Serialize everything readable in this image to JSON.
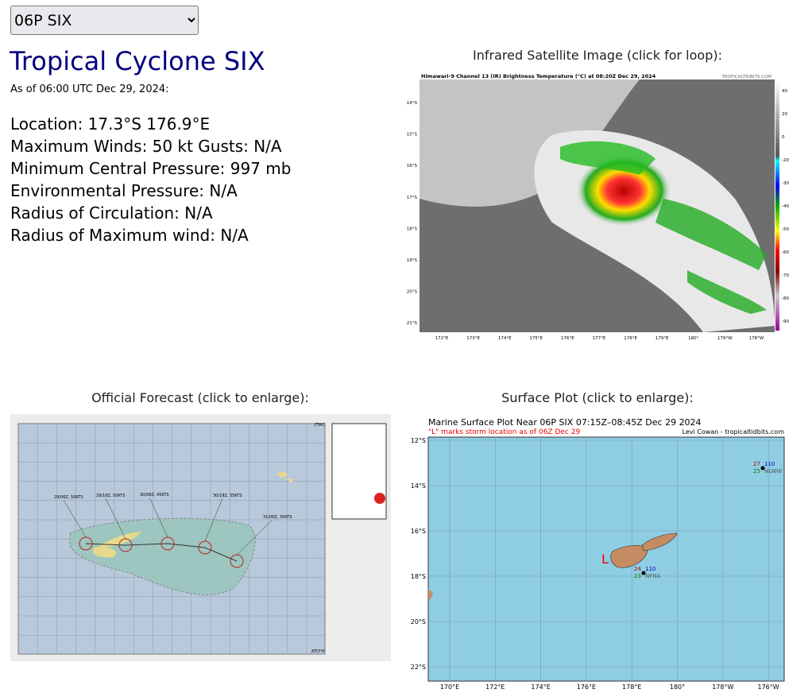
{
  "storm_select": {
    "value": "06P SIX"
  },
  "header": {
    "title": "Tropical Cyclone SIX",
    "as_of": "As of 06:00 UTC Dec 29, 2024:"
  },
  "info": [
    "Location: 17.3°S 176.9°E",
    "Maximum Winds: 50 kt  Gusts: N/A",
    "Minimum Central Pressure: 997 mb",
    "Environmental Pressure: N/A",
    "Radius of Circulation: N/A",
    "Radius of Maximum wind: N/A"
  ],
  "satellite": {
    "caption": "Infrared Satellite Image (click for loop):",
    "image_title": "Himawari-9 Channel 13 (IR) Brightness Temperature (°C) at 08:20Z Dec 29, 2024",
    "credit": "TROPICALTIDBITS.COM",
    "lat_labels": [
      "14°S",
      "15°S",
      "16°S",
      "17°S",
      "18°S",
      "19°S",
      "20°S",
      "21°S"
    ],
    "lon_labels": [
      "172°E",
      "173°E",
      "174°E",
      "175°E",
      "176°E",
      "177°E",
      "178°E",
      "179°E",
      "180°",
      "179°W",
      "178°W"
    ],
    "colorbar_labels": [
      "40",
      "20",
      "0",
      "-20",
      "-30",
      "-40",
      "-50",
      "-60",
      "-70",
      "-80",
      "-90"
    ]
  },
  "forecast": {
    "caption": "Official Forecast (click to enlarge):",
    "agency": "JTWC",
    "footer": "ATCF®",
    "points": [
      "29/06Z, 50KTS",
      "29/18Z, 50KTS",
      "30/06Z, 45KTS",
      "30/18Z, 35KTS",
      "31/06Z, 30KTS"
    ]
  },
  "surface": {
    "caption": "Surface Plot (click to enlarge):",
    "title": "Marine Surface Plot Near 06P SIX 07:15Z–08:45Z Dec 29 2024",
    "subtitle": "\"L\" marks storm location as of 06Z Dec 29",
    "credit": "Levi Cowan - tropicaltidbits.com",
    "lat_labels": [
      "12°S",
      "14°S",
      "16°S",
      "18°S",
      "20°S",
      "22°S"
    ],
    "lon_labels": [
      "170°E",
      "172°E",
      "174°E",
      "176°E",
      "178°E",
      "180°",
      "178°W",
      "176°W"
    ],
    "storm_marker": "L",
    "stations": [
      {
        "id": "NLWW",
        "temp": "27",
        "dew": "25",
        "pressure": "110"
      },
      {
        "id": "NFNA",
        "temp": "24",
        "dew": "23",
        "pressure": "110"
      }
    ]
  }
}
